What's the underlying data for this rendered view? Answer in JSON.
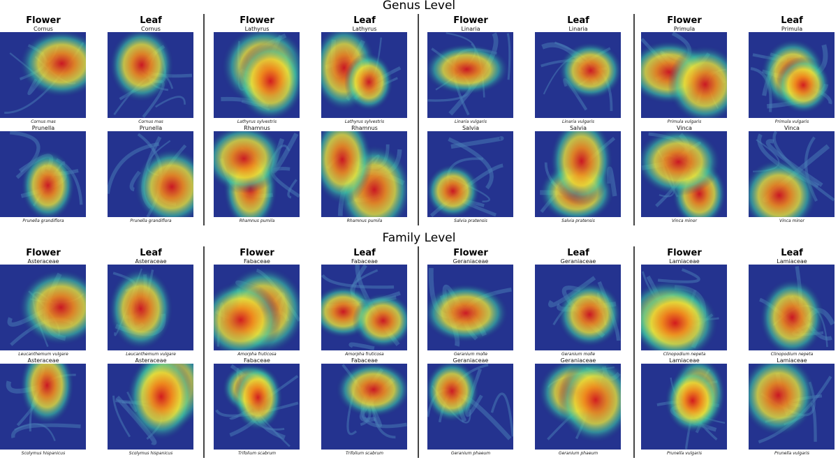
{
  "sections": [
    {
      "title": "Genus Level",
      "groups": [
        {
          "flower_header": "Flower",
          "leaf_header": "Leaf",
          "rows": [
            {
              "flower_label": "Cornus",
              "flower_caption": "Cornus mas",
              "leaf_label": "Cornus",
              "leaf_caption": "Cornus mas"
            },
            {
              "flower_label": "Prunella",
              "flower_caption": "Prunella grandiflora",
              "leaf_label": "Prunella",
              "leaf_caption": "Prunella grandiflora"
            }
          ]
        },
        {
          "flower_header": "Flower",
          "leaf_header": "Leaf",
          "rows": [
            {
              "flower_label": "Lathyrus",
              "flower_caption": "Lathyrus sylvestris",
              "leaf_label": "Lathyrus",
              "leaf_caption": "Lathyrus sylvestris"
            },
            {
              "flower_label": "Rhamnus",
              "flower_caption": "Rhamnus pumila",
              "leaf_label": "Rhamnus",
              "leaf_caption": "Rhamnus pumila"
            }
          ]
        },
        {
          "flower_header": "Flower",
          "leaf_header": "Leaf",
          "rows": [
            {
              "flower_label": "Linaria",
              "flower_caption": "Linaria vulgaris",
              "leaf_label": "Linaria",
              "leaf_caption": "Linaria vulgaris"
            },
            {
              "flower_label": "Salvia",
              "flower_caption": "Salvia pratensis",
              "leaf_label": "Salvia",
              "leaf_caption": "Salvia pratensis"
            }
          ]
        },
        {
          "flower_header": "Flower",
          "leaf_header": "Leaf",
          "rows": [
            {
              "flower_label": "Primula",
              "flower_caption": "Primula vulgaris",
              "leaf_label": "Primula",
              "leaf_caption": "Primula vulgaris"
            },
            {
              "flower_label": "Vinca",
              "flower_caption": "Vinca minor",
              "leaf_label": "Vinca",
              "leaf_caption": "Vinca minor"
            }
          ]
        }
      ]
    },
    {
      "title": "Family Level",
      "groups": [
        {
          "flower_header": "Flower",
          "leaf_header": "Leaf",
          "rows": [
            {
              "flower_label": "Asteraceae",
              "flower_caption": "Leucanthemum vulgare",
              "leaf_label": "Asteraceae",
              "leaf_caption": "Leucanthemum vulgare"
            },
            {
              "flower_label": "Asteraceae",
              "flower_caption": "Scolymus hispanicus",
              "leaf_label": "Asteraceae",
              "leaf_caption": "Scolymus hispanicus"
            }
          ]
        },
        {
          "flower_header": "Flower",
          "leaf_header": "Leaf",
          "rows": [
            {
              "flower_label": "Fabaceae",
              "flower_caption": "Amorpha fruticosa",
              "leaf_label": "Fabaceae",
              "leaf_caption": "Amorpha fruticosa"
            },
            {
              "flower_label": "Fabaceae",
              "flower_caption": "Trifolium scabrum",
              "leaf_label": "Fabaceae",
              "leaf_caption": "Trifolium scabrum"
            }
          ]
        },
        {
          "flower_header": "Flower",
          "leaf_header": "Leaf",
          "rows": [
            {
              "flower_label": "Geraniaceae",
              "flower_caption": "Geranium molle",
              "leaf_label": "Geraniaceae",
              "leaf_caption": "Geranium molle"
            },
            {
              "flower_label": "Geraniaceae",
              "flower_caption": "Geranium phaeum",
              "leaf_label": "Geraniaceae",
              "leaf_caption": "Geranium phaeum"
            }
          ]
        },
        {
          "flower_header": "Flower",
          "leaf_header": "Leaf",
          "rows": [
            {
              "flower_label": "Lamiaceae",
              "flower_caption": "Clinopodium nepeta",
              "leaf_label": "Lamiaceae",
              "leaf_caption": "Clinopodium nepeta"
            },
            {
              "flower_label": "Lamiaceae",
              "flower_caption": "Prunella vulgaris",
              "leaf_label": "Lamiaceae",
              "leaf_caption": "Prunella vulgaris"
            }
          ]
        }
      ]
    }
  ],
  "colors": {
    "heat_low": "#1a237e",
    "heat_mid": "#2fb6a6",
    "heat_high": "#e8202a",
    "divider": "#444444"
  }
}
